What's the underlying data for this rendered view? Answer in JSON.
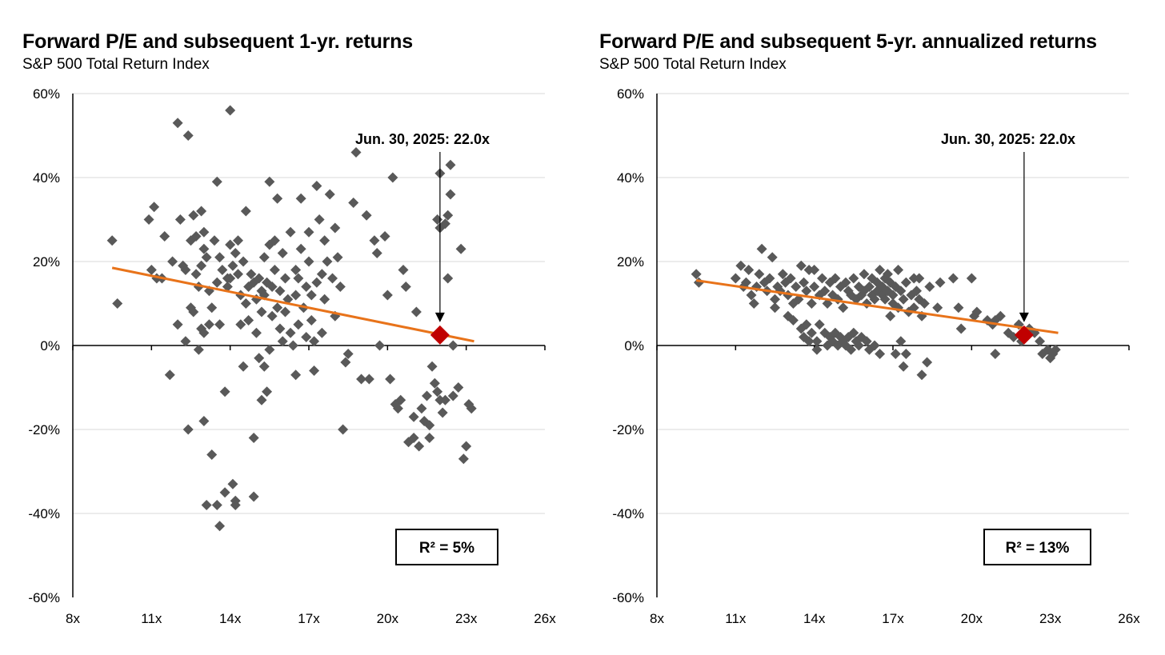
{
  "colors": {
    "point": "#595959",
    "trend": "#E8731A",
    "highlight": "#C00000",
    "grid": "#D9D9D9",
    "axis": "#000000"
  },
  "chart_data": [
    {
      "type": "scatter",
      "title": "Forward P/E and subsequent 1-yr. returns",
      "subtitle": "S&P 500 Total Return Index",
      "xlabel": "",
      "ylabel": "",
      "xlim": [
        8,
        26
      ],
      "ylim": [
        -60,
        60
      ],
      "x_ticks": [
        8,
        11,
        14,
        17,
        20,
        23,
        26
      ],
      "x_tick_labels": [
        "8x",
        "11x",
        "14x",
        "17x",
        "20x",
        "23x",
        "26x"
      ],
      "y_ticks": [
        -60,
        -40,
        -20,
        0,
        20,
        40,
        60
      ],
      "y_tick_labels": [
        "-60%",
        "-40%",
        "-20%",
        "0%",
        "20%",
        "40%",
        "60%"
      ],
      "grid": true,
      "annotation": {
        "label": "Jun. 30, 2025: 22.0x",
        "x": 22.0,
        "y": 2.5
      },
      "highlight_point": {
        "x": 22.0,
        "y": 2.5
      },
      "trendline": {
        "x": [
          9.5,
          23.3
        ],
        "y": [
          18.5,
          1.0
        ]
      },
      "r_squared_label": "R² = 5%",
      "legend": "bottom-right",
      "points": [
        [
          9.5,
          25
        ],
        [
          9.7,
          10
        ],
        [
          10.9,
          30
        ],
        [
          11.1,
          33
        ],
        [
          11.0,
          18
        ],
        [
          11.2,
          16
        ],
        [
          11.4,
          16
        ],
        [
          11.5,
          26
        ],
        [
          11.7,
          -7
        ],
        [
          11.8,
          20
        ],
        [
          12.0,
          5
        ],
        [
          12.0,
          53
        ],
        [
          12.1,
          30
        ],
        [
          12.2,
          19
        ],
        [
          12.3,
          18
        ],
        [
          12.3,
          1
        ],
        [
          12.4,
          50
        ],
        [
          12.4,
          -20
        ],
        [
          12.5,
          9
        ],
        [
          12.5,
          25
        ],
        [
          12.6,
          31
        ],
        [
          12.6,
          8
        ],
        [
          12.7,
          17
        ],
        [
          12.7,
          26
        ],
        [
          12.8,
          14
        ],
        [
          12.8,
          -1
        ],
        [
          12.9,
          19
        ],
        [
          12.9,
          4
        ],
        [
          12.9,
          32
        ],
        [
          13.0,
          23
        ],
        [
          13.0,
          27
        ],
        [
          13.0,
          3
        ],
        [
          13.0,
          -18
        ],
        [
          13.1,
          21
        ],
        [
          13.1,
          -38
        ],
        [
          13.2,
          13
        ],
        [
          13.2,
          5
        ],
        [
          13.3,
          9
        ],
        [
          13.3,
          -26
        ],
        [
          13.4,
          25
        ],
        [
          13.5,
          15
        ],
        [
          13.5,
          39
        ],
        [
          13.5,
          -38
        ],
        [
          13.6,
          5
        ],
        [
          13.6,
          21
        ],
        [
          13.6,
          -43
        ],
        [
          13.7,
          18
        ],
        [
          13.8,
          -35
        ],
        [
          13.8,
          -11
        ],
        [
          13.9,
          16
        ],
        [
          13.9,
          14
        ],
        [
          14.0,
          56
        ],
        [
          14.0,
          24
        ],
        [
          14.0,
          16
        ],
        [
          14.1,
          19
        ],
        [
          14.1,
          -33
        ],
        [
          14.2,
          22
        ],
        [
          14.2,
          -37
        ],
        [
          14.2,
          -38
        ],
        [
          14.3,
          17
        ],
        [
          14.3,
          25
        ],
        [
          14.4,
          12
        ],
        [
          14.4,
          5
        ],
        [
          14.5,
          -5
        ],
        [
          14.5,
          20
        ],
        [
          14.6,
          32
        ],
        [
          14.6,
          10
        ],
        [
          14.7,
          14
        ],
        [
          14.7,
          6
        ],
        [
          14.8,
          17
        ],
        [
          14.9,
          15
        ],
        [
          14.9,
          -22
        ],
        [
          14.9,
          -36
        ],
        [
          15.0,
          11
        ],
        [
          15.0,
          3
        ],
        [
          15.1,
          16
        ],
        [
          15.1,
          -3
        ],
        [
          15.2,
          13
        ],
        [
          15.2,
          -13
        ],
        [
          15.2,
          8
        ],
        [
          15.3,
          21
        ],
        [
          15.3,
          -5
        ],
        [
          15.3,
          12
        ],
        [
          15.4,
          15
        ],
        [
          15.4,
          -11
        ],
        [
          15.5,
          39
        ],
        [
          15.5,
          -1
        ],
        [
          15.5,
          24
        ],
        [
          15.6,
          7
        ],
        [
          15.6,
          14
        ],
        [
          15.7,
          25
        ],
        [
          15.7,
          18
        ],
        [
          15.8,
          35
        ],
        [
          15.8,
          9
        ],
        [
          15.9,
          4
        ],
        [
          15.9,
          13
        ],
        [
          16.0,
          1
        ],
        [
          16.0,
          22
        ],
        [
          16.1,
          16
        ],
        [
          16.1,
          8
        ],
        [
          16.2,
          11
        ],
        [
          16.3,
          27
        ],
        [
          16.3,
          3
        ],
        [
          16.4,
          0
        ],
        [
          16.5,
          18
        ],
        [
          16.5,
          -7
        ],
        [
          16.5,
          12
        ],
        [
          16.6,
          16
        ],
        [
          16.6,
          5
        ],
        [
          16.7,
          23
        ],
        [
          16.7,
          35
        ],
        [
          16.8,
          9
        ],
        [
          16.9,
          14
        ],
        [
          16.9,
          2
        ],
        [
          17.0,
          27
        ],
        [
          17.0,
          20
        ],
        [
          17.1,
          12
        ],
        [
          17.1,
          6
        ],
        [
          17.2,
          1
        ],
        [
          17.2,
          -6
        ],
        [
          17.3,
          38
        ],
        [
          17.3,
          15
        ],
        [
          17.4,
          30
        ],
        [
          17.5,
          17
        ],
        [
          17.5,
          3
        ],
        [
          17.6,
          11
        ],
        [
          17.6,
          25
        ],
        [
          17.7,
          20
        ],
        [
          17.8,
          36
        ],
        [
          17.9,
          16
        ],
        [
          18.0,
          28
        ],
        [
          18.0,
          7
        ],
        [
          18.1,
          21
        ],
        [
          18.2,
          14
        ],
        [
          18.3,
          -20
        ],
        [
          18.4,
          -4
        ],
        [
          18.5,
          -2
        ],
        [
          18.7,
          34
        ],
        [
          18.8,
          46
        ],
        [
          19.0,
          -8
        ],
        [
          19.2,
          31
        ],
        [
          19.3,
          -8
        ],
        [
          19.5,
          25
        ],
        [
          19.6,
          22
        ],
        [
          19.7,
          0
        ],
        [
          19.9,
          26
        ],
        [
          20.0,
          12
        ],
        [
          20.1,
          -8
        ],
        [
          20.2,
          40
        ],
        [
          20.3,
          -14
        ],
        [
          20.4,
          -15
        ],
        [
          20.5,
          -13
        ],
        [
          20.6,
          18
        ],
        [
          20.7,
          14
        ],
        [
          20.8,
          -23
        ],
        [
          21.0,
          -22
        ],
        [
          21.0,
          -17
        ],
        [
          21.1,
          8
        ],
        [
          21.2,
          -24
        ],
        [
          21.3,
          -15
        ],
        [
          21.4,
          -18
        ],
        [
          21.5,
          -12
        ],
        [
          21.6,
          -19
        ],
        [
          21.7,
          -5
        ],
        [
          21.8,
          -9
        ],
        [
          21.9,
          -11
        ],
        [
          22.0,
          -13
        ],
        [
          22.1,
          -16
        ],
        [
          21.9,
          30
        ],
        [
          22.0,
          28
        ],
        [
          22.0,
          41
        ],
        [
          22.3,
          31
        ],
        [
          22.4,
          36
        ],
        [
          22.4,
          43
        ],
        [
          22.3,
          16
        ],
        [
          22.5,
          0
        ],
        [
          22.2,
          -13
        ],
        [
          22.8,
          23
        ],
        [
          22.7,
          -10
        ],
        [
          22.9,
          -27
        ],
        [
          23.0,
          -24
        ],
        [
          23.1,
          -14
        ],
        [
          23.2,
          -15
        ],
        [
          22.5,
          -12
        ],
        [
          21.6,
          -22
        ],
        [
          22.2,
          29
        ]
      ]
    },
    {
      "type": "scatter",
      "title": "Forward P/E and subsequent 5-yr. annualized returns",
      "subtitle": "S&P 500 Total Return Index",
      "xlabel": "",
      "ylabel": "",
      "xlim": [
        8,
        26
      ],
      "ylim": [
        -60,
        60
      ],
      "x_ticks": [
        8,
        11,
        14,
        17,
        20,
        23,
        26
      ],
      "x_tick_labels": [
        "8x",
        "11x",
        "14x",
        "17x",
        "20x",
        "23x",
        "26x"
      ],
      "y_ticks": [
        -60,
        -40,
        -20,
        0,
        20,
        40,
        60
      ],
      "y_tick_labels": [
        "-60%",
        "-40%",
        "-20%",
        "0%",
        "20%",
        "40%",
        "60%"
      ],
      "grid": true,
      "annotation": {
        "label": "Jun. 30, 2025: 22.0x",
        "x": 22.0,
        "y": 2.5
      },
      "highlight_point": {
        "x": 22.0,
        "y": 2.5
      },
      "trendline": {
        "x": [
          9.5,
          23.3
        ],
        "y": [
          15.5,
          3.0
        ]
      },
      "r_squared_label": "R² = 13%",
      "legend": "bottom-right",
      "points": [
        [
          9.5,
          17
        ],
        [
          9.6,
          15
        ],
        [
          11.0,
          16
        ],
        [
          11.2,
          19
        ],
        [
          11.3,
          14
        ],
        [
          11.4,
          15
        ],
        [
          11.5,
          18
        ],
        [
          11.6,
          12
        ],
        [
          11.7,
          10
        ],
        [
          11.8,
          14
        ],
        [
          11.9,
          17
        ],
        [
          12.0,
          23
        ],
        [
          12.1,
          15
        ],
        [
          12.2,
          13
        ],
        [
          12.3,
          16
        ],
        [
          12.4,
          21
        ],
        [
          12.5,
          11
        ],
        [
          12.5,
          9
        ],
        [
          12.6,
          14
        ],
        [
          12.7,
          13
        ],
        [
          12.8,
          17
        ],
        [
          12.9,
          15
        ],
        [
          13.0,
          12
        ],
        [
          13.0,
          7
        ],
        [
          13.1,
          16
        ],
        [
          13.2,
          10
        ],
        [
          13.2,
          6
        ],
        [
          13.3,
          14
        ],
        [
          13.4,
          11
        ],
        [
          13.5,
          19
        ],
        [
          13.5,
          4
        ],
        [
          13.6,
          15
        ],
        [
          13.6,
          2
        ],
        [
          13.7,
          13
        ],
        [
          13.7,
          5
        ],
        [
          13.8,
          18
        ],
        [
          13.8,
          1
        ],
        [
          13.9,
          10
        ],
        [
          13.9,
          3
        ],
        [
          14.0,
          14
        ],
        [
          14.0,
          18
        ],
        [
          14.1,
          1
        ],
        [
          14.1,
          -1
        ],
        [
          14.2,
          12
        ],
        [
          14.2,
          5
        ],
        [
          14.3,
          16
        ],
        [
          14.4,
          3
        ],
        [
          14.4,
          13
        ],
        [
          14.5,
          0
        ],
        [
          14.5,
          10
        ],
        [
          14.6,
          15
        ],
        [
          14.6,
          2
        ],
        [
          14.7,
          1
        ],
        [
          14.7,
          12
        ],
        [
          14.8,
          16
        ],
        [
          14.8,
          3
        ],
        [
          14.9,
          0
        ],
        [
          14.9,
          11
        ],
        [
          15.0,
          14
        ],
        [
          15.0,
          2
        ],
        [
          15.1,
          1
        ],
        [
          15.1,
          9
        ],
        [
          15.2,
          15
        ],
        [
          15.2,
          0
        ],
        [
          15.3,
          13
        ],
        [
          15.3,
          2
        ],
        [
          15.4,
          12
        ],
        [
          15.4,
          -1
        ],
        [
          15.5,
          16
        ],
        [
          15.5,
          3
        ],
        [
          15.6,
          11
        ],
        [
          15.6,
          1
        ],
        [
          15.7,
          14
        ],
        [
          15.7,
          0
        ],
        [
          15.8,
          12
        ],
        [
          15.8,
          2
        ],
        [
          15.9,
          17
        ],
        [
          15.9,
          13
        ],
        [
          16.0,
          10
        ],
        [
          16.0,
          1
        ],
        [
          16.1,
          14
        ],
        [
          16.1,
          -1
        ],
        [
          16.2,
          12
        ],
        [
          16.2,
          16
        ],
        [
          16.3,
          11
        ],
        [
          16.3,
          0
        ],
        [
          16.4,
          15
        ],
        [
          16.4,
          13
        ],
        [
          16.5,
          18
        ],
        [
          16.5,
          -2
        ],
        [
          16.6,
          12
        ],
        [
          16.6,
          14
        ],
        [
          16.7,
          16
        ],
        [
          16.7,
          11
        ],
        [
          16.8,
          17
        ],
        [
          16.8,
          13
        ],
        [
          16.9,
          7
        ],
        [
          16.9,
          15
        ],
        [
          17.0,
          12
        ],
        [
          17.0,
          10
        ],
        [
          17.1,
          14
        ],
        [
          17.1,
          -2
        ],
        [
          17.2,
          18
        ],
        [
          17.2,
          9
        ],
        [
          17.3,
          13
        ],
        [
          17.3,
          1
        ],
        [
          17.4,
          11
        ],
        [
          17.4,
          -5
        ],
        [
          17.5,
          15
        ],
        [
          17.5,
          -2
        ],
        [
          17.6,
          8
        ],
        [
          17.7,
          12
        ],
        [
          17.8,
          16
        ],
        [
          17.8,
          9
        ],
        [
          17.9,
          13
        ],
        [
          18.0,
          16
        ],
        [
          18.0,
          11
        ],
        [
          18.1,
          7
        ],
        [
          18.1,
          -7
        ],
        [
          18.2,
          10
        ],
        [
          18.3,
          -4
        ],
        [
          18.4,
          14
        ],
        [
          18.7,
          9
        ],
        [
          18.8,
          15
        ],
        [
          19.3,
          16
        ],
        [
          19.5,
          9
        ],
        [
          19.6,
          4
        ],
        [
          20.0,
          16
        ],
        [
          20.1,
          7
        ],
        [
          20.2,
          8
        ],
        [
          20.6,
          6
        ],
        [
          20.8,
          5
        ],
        [
          20.9,
          6
        ],
        [
          20.9,
          -2
        ],
        [
          21.1,
          7
        ],
        [
          21.4,
          3
        ],
        [
          21.6,
          2
        ],
        [
          21.8,
          5
        ],
        [
          21.9,
          1
        ],
        [
          22.0,
          2
        ],
        [
          22.2,
          4
        ],
        [
          22.4,
          3
        ],
        [
          22.6,
          1
        ],
        [
          22.7,
          -2
        ],
        [
          22.9,
          -1
        ],
        [
          23.0,
          -3
        ],
        [
          23.1,
          -2
        ],
        [
          23.2,
          -1
        ]
      ]
    }
  ]
}
